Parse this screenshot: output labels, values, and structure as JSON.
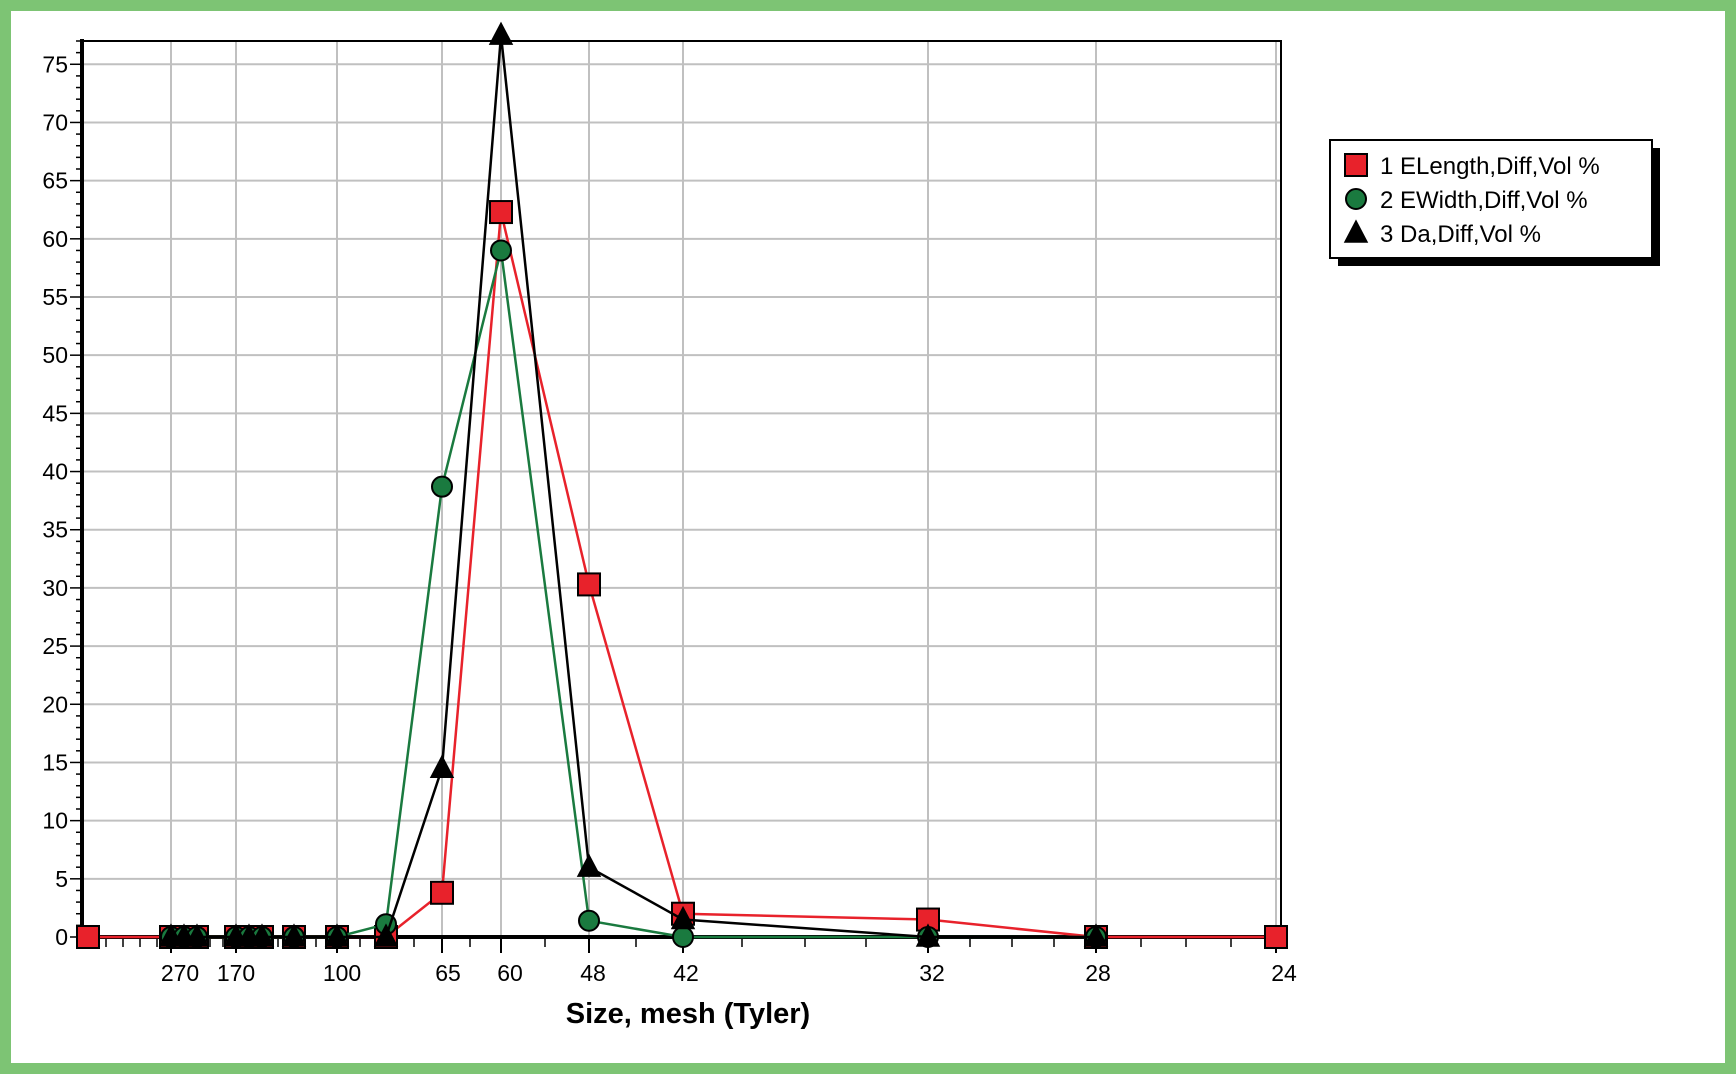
{
  "colors": {
    "frame": "#7dc474",
    "grid": "#c0c0c0",
    "series": [
      "#e8222b",
      "#1a7a3f",
      "#000000"
    ]
  },
  "chart_data": {
    "type": "line",
    "title": "",
    "xlabel": "Size, mesh (Tyler)",
    "ylabel": "",
    "x_scale": "mesh positions (non-linear)",
    "x_tick_labels": [
      "270",
      "170",
      "100",
      "65",
      "60",
      "48",
      "42",
      "32",
      "28",
      "24"
    ],
    "ylim": [
      0,
      77
    ],
    "y_ticks": [
      0,
      5,
      10,
      15,
      20,
      25,
      30,
      35,
      40,
      45,
      50,
      55,
      60,
      65,
      70,
      75
    ],
    "grid": true,
    "legend_position": "right",
    "x_points": [
      "",
      "",
      "270",
      "",
      "",
      "170",
      "",
      "",
      "100",
      "",
      "65",
      "60",
      "48",
      "42",
      "32",
      "28",
      "24"
    ],
    "series": [
      {
        "name": "1 ELength,Diff,Vol %",
        "marker": "square",
        "values": [
          0,
          0,
          0,
          0,
          0,
          0,
          0,
          0,
          0,
          0,
          3.8,
          62.3,
          30.3,
          2.0,
          1.5,
          0,
          0
        ]
      },
      {
        "name": "2 EWidth,Diff,Vol %",
        "marker": "circle",
        "values": [
          null,
          0,
          0,
          0,
          0,
          0,
          0,
          0,
          0,
          1.1,
          38.7,
          59.0,
          1.4,
          0,
          0,
          0,
          null
        ]
      },
      {
        "name": "3 Da,Diff,Vol %",
        "marker": "triangle",
        "values": [
          null,
          0,
          0,
          0,
          0,
          0,
          0,
          0,
          0,
          0,
          14.5,
          77.5,
          6.0,
          1.5,
          0,
          0,
          null
        ]
      }
    ]
  }
}
